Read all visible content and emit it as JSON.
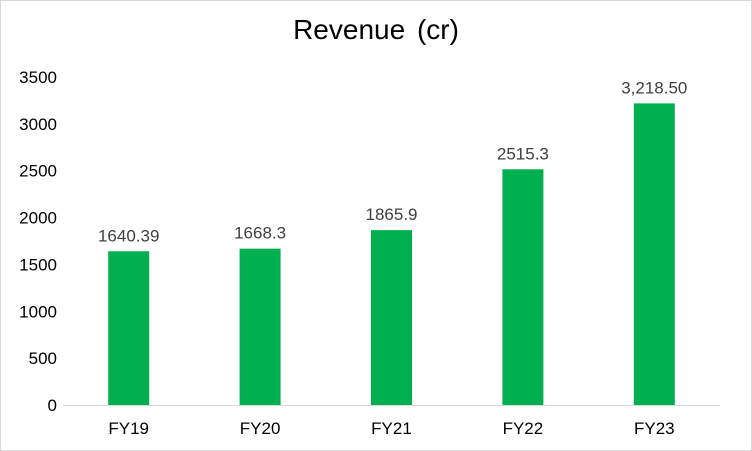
{
  "chart_data": {
    "type": "bar",
    "title": "Revenue (cr)",
    "xlabel": "",
    "ylabel": "",
    "categories": [
      "FY19",
      "FY20",
      "FY21",
      "FY22",
      "FY23"
    ],
    "values": [
      1640.39,
      1668.3,
      1865.9,
      2515.3,
      3218.5
    ],
    "data_labels": [
      "1640.39",
      "1668.3",
      "1865.9",
      "2515.3",
      "3,218.50"
    ],
    "ylim": [
      0,
      3500
    ],
    "y_ticks": [
      0,
      500,
      1000,
      1500,
      2000,
      2500,
      3000,
      3500
    ],
    "grid": false,
    "legend": "none",
    "bar_color": "#00b050"
  }
}
